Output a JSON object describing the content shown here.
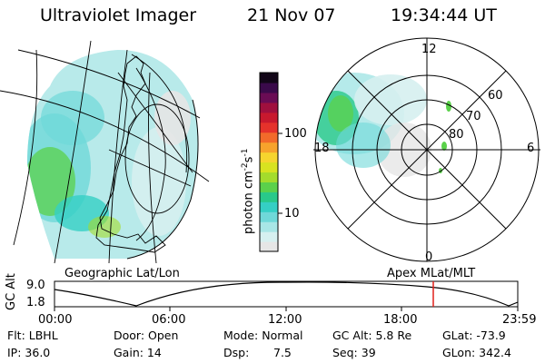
{
  "header": {
    "instrument": "Ultraviolet Imager",
    "date": "21 Nov 07",
    "time": "19:34:44 UT"
  },
  "panels": {
    "left_label": "Geographic Lat/Lon",
    "right_label": "Apex  MLat/MLT"
  },
  "colorbar": {
    "unit": "photon cm",
    "unit_sup1": "-2",
    "unit_mid": "s",
    "unit_sup2": "-1",
    "tick_100": "100",
    "tick_10": "10",
    "scale": "log",
    "colors": [
      "#e6e6e6",
      "#d6f0f0",
      "#a8e6e6",
      "#6fd8d8",
      "#35cfc4",
      "#29c98a",
      "#5bd14b",
      "#a4dc2c",
      "#d8e320",
      "#f6d52e",
      "#f7a32c",
      "#f26a2a",
      "#e5322b",
      "#c8192e",
      "#a0103e",
      "#6a0c54",
      "#3a0a4a",
      "#120618"
    ]
  },
  "polar": {
    "mlt_12": "12",
    "mlt_18": "18",
    "mlt_6": "6",
    "mlt_0": "0",
    "lat_60": "60",
    "lat_70": "70",
    "lat_80": "80"
  },
  "altitude_plot": {
    "ylabel": "GC Alt",
    "ymax": "9.0",
    "ymin": "1.8",
    "xticks": [
      "00:00",
      "06:00",
      "12:00",
      "18:00",
      "23:59"
    ],
    "marker_color": "#e0201a"
  },
  "info": {
    "flt": "Flt: LBHL",
    "door": "Door: Open",
    "mode": "Mode: Normal",
    "gc_alt": "GC Alt: 5.8 Re",
    "glat": "GLat: -73.9",
    "ip": "IP: 36.0",
    "gain": "Gain: 14",
    "dsp_label": "Dsp:",
    "dsp_value": "7.5",
    "seq": "Seq: 39",
    "glon": "GLon: 342.4"
  }
}
